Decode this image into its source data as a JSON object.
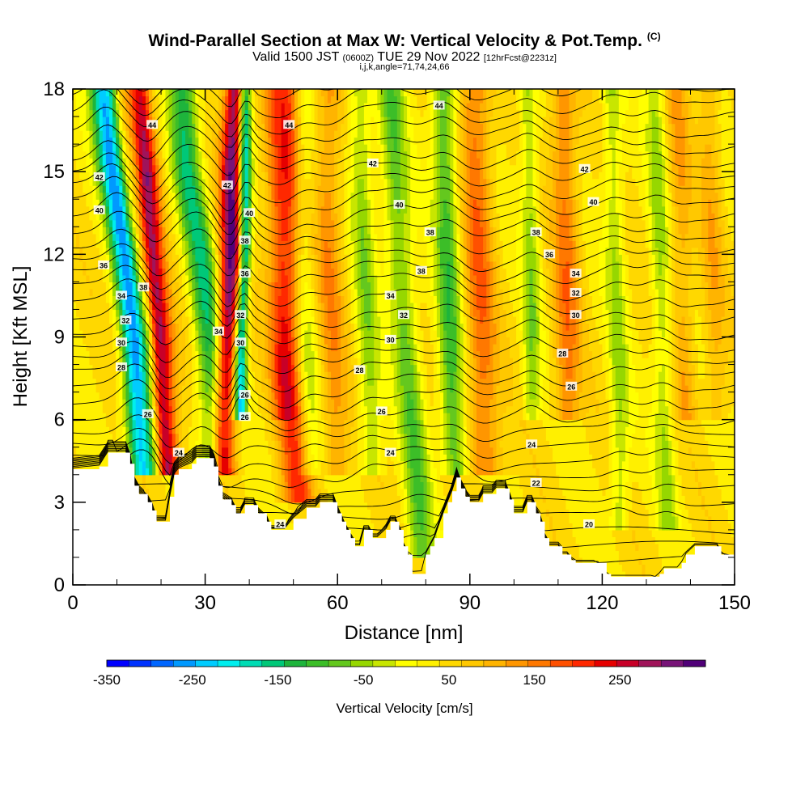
{
  "header": {
    "title": "Wind-Parallel Section at Max W: Vertical Velocity & Pot.Temp.",
    "copyright": "(C)",
    "valid_prefix": "Valid 1500 JST",
    "valid_zulu": "(0600Z)",
    "valid_date": "TUE 29 Nov 2022",
    "forecast": "[12hrFcst@2231z]",
    "indices": "i,j,k,angle=71,74,24,66"
  },
  "colors": {
    "terrain": "#ffffff",
    "contour": "#000000",
    "background": "#ffffff"
  },
  "chart_data": {
    "type": "heatmap",
    "xlabel": "Distance [nm]",
    "ylabel": "Height [Kft MSL]",
    "xlim": [
      0,
      150
    ],
    "ylim": [
      0,
      18
    ],
    "x_ticks": [
      "0",
      "30",
      "60",
      "90",
      "120",
      "150"
    ],
    "y_ticks": [
      "0",
      "3",
      "6",
      "9",
      "12",
      "15",
      "18"
    ],
    "colorbar": {
      "label": "Vertical Velocity [cm/s]",
      "range": [
        -350,
        350
      ],
      "tick_labels": [
        "-350",
        "-250",
        "-150",
        "-50",
        "50",
        "150",
        "250"
      ],
      "colors": [
        "#0000ff",
        "#0033ff",
        "#0066ff",
        "#0099ff",
        "#00ccff",
        "#00eeee",
        "#00dcb4",
        "#00c878",
        "#1eb43c",
        "#3cbe28",
        "#64c81e",
        "#96d700",
        "#c8e600",
        "#ffff00",
        "#fff000",
        "#ffd800",
        "#ffc800",
        "#ffb400",
        "#ff9600",
        "#ff7800",
        "#ff5000",
        "#ff2800",
        "#e60000",
        "#c80028",
        "#a0145a",
        "#781478",
        "#500078"
      ]
    },
    "terrain_profile": [
      [
        0,
        4.2
      ],
      [
        6,
        4.3
      ],
      [
        8,
        4.8
      ],
      [
        12,
        4.8
      ],
      [
        13,
        4.4
      ],
      [
        14,
        3.6
      ],
      [
        15,
        3.3
      ],
      [
        17,
        3.0
      ],
      [
        18,
        2.7
      ],
      [
        19,
        2.3
      ],
      [
        21,
        2.3
      ],
      [
        22,
        3.2
      ],
      [
        23,
        4.0
      ],
      [
        24,
        4.2
      ],
      [
        27,
        4.4
      ],
      [
        28,
        4.6
      ],
      [
        31,
        4.6
      ],
      [
        32,
        4.3
      ],
      [
        33,
        3.6
      ],
      [
        34,
        3.1
      ],
      [
        36,
        2.9
      ],
      [
        37,
        2.6
      ],
      [
        38,
        2.6
      ],
      [
        39,
        2.9
      ],
      [
        41,
        2.9
      ],
      [
        42,
        2.6
      ],
      [
        44,
        2.3
      ],
      [
        45,
        2.0
      ],
      [
        48,
        2.0
      ],
      [
        50,
        2.4
      ],
      [
        53,
        2.8
      ],
      [
        55,
        2.8
      ],
      [
        56,
        3.0
      ],
      [
        59,
        3.0
      ],
      [
        60,
        2.6
      ],
      [
        61,
        2.3
      ],
      [
        62,
        2.0
      ],
      [
        63,
        1.7
      ],
      [
        64,
        1.4
      ],
      [
        65,
        1.4
      ],
      [
        66,
        2.0
      ],
      [
        67,
        2.0
      ],
      [
        68,
        1.7
      ],
      [
        69,
        1.7
      ],
      [
        71,
        2.0
      ],
      [
        72,
        2.3
      ],
      [
        73,
        2.3
      ],
      [
        74,
        2.0
      ],
      [
        75,
        1.4
      ],
      [
        76,
        1.1
      ],
      [
        77,
        0.4
      ],
      [
        79,
        0.4
      ],
      [
        80,
        1.1
      ],
      [
        81,
        1.4
      ],
      [
        82,
        1.7
      ],
      [
        84,
        2.6
      ],
      [
        85,
        3.0
      ],
      [
        86,
        3.4
      ],
      [
        87,
        3.9
      ],
      [
        88,
        3.5
      ],
      [
        89,
        3.2
      ],
      [
        90,
        3.0
      ],
      [
        92,
        3.0
      ],
      [
        93,
        3.3
      ],
      [
        95,
        3.3
      ],
      [
        96,
        3.5
      ],
      [
        98,
        3.5
      ],
      [
        99,
        3.1
      ],
      [
        100,
        2.6
      ],
      [
        102,
        2.6
      ],
      [
        103,
        3.0
      ],
      [
        104,
        3.0
      ],
      [
        105,
        2.6
      ],
      [
        106,
        2.3
      ],
      [
        107,
        1.7
      ],
      [
        108,
        1.4
      ],
      [
        110,
        1.4
      ],
      [
        111,
        1.1
      ],
      [
        112,
        1.1
      ],
      [
        113,
        0.9
      ],
      [
        114,
        0.8
      ],
      [
        116,
        0.8
      ],
      [
        119,
        0.8
      ],
      [
        121,
        0.4
      ],
      [
        122,
        0.3
      ],
      [
        132,
        0.3
      ],
      [
        133,
        0.4
      ],
      [
        134,
        0.6
      ],
      [
        137,
        0.6
      ],
      [
        138,
        0.8
      ],
      [
        139,
        1.1
      ],
      [
        141,
        1.4
      ],
      [
        146,
        1.4
      ],
      [
        147,
        1.1
      ],
      [
        150,
        1.0
      ]
    ],
    "series": [
      {
        "name": "up-1",
        "values": [
          [
            14,
            18
          ],
          [
            16,
            15
          ],
          [
            17,
            12
          ],
          [
            19,
            9
          ],
          [
            20,
            6
          ],
          [
            21,
            4
          ]
        ],
        "width": 3.2,
        "amp": 300
      },
      {
        "name": "down-1",
        "values": [
          [
            7,
            18
          ],
          [
            9,
            15
          ],
          [
            12,
            12
          ],
          [
            14,
            9
          ],
          [
            15,
            6
          ],
          [
            16,
            4
          ]
        ],
        "width": 3.0,
        "amp": -300
      },
      {
        "name": "down-1b",
        "values": [
          [
            13,
            18
          ],
          [
            15,
            14
          ],
          [
            17,
            10
          ],
          [
            18,
            7
          ],
          [
            19,
            4
          ]
        ],
        "width": 2.0,
        "amp": -150
      },
      {
        "name": "up-2",
        "values": [
          [
            37,
            18
          ],
          [
            36,
            15
          ],
          [
            36,
            12
          ],
          [
            35,
            9
          ],
          [
            34,
            6
          ],
          [
            34,
            4
          ]
        ],
        "width": 2.6,
        "amp": 280
      },
      {
        "name": "down-2",
        "values": [
          [
            25,
            18
          ],
          [
            26,
            15
          ],
          [
            29,
            12
          ],
          [
            31,
            9
          ],
          [
            32,
            6
          ],
          [
            32,
            4
          ]
        ],
        "width": 3.2,
        "amp": -180
      },
      {
        "name": "down-2b",
        "values": [
          [
            39,
            14
          ],
          [
            39,
            12
          ],
          [
            38,
            9
          ],
          [
            38,
            6
          ]
        ],
        "width": 1.4,
        "amp": -280
      },
      {
        "name": "up-3",
        "values": [
          [
            49,
            8
          ],
          [
            50,
            6
          ],
          [
            51,
            3
          ]
        ],
        "width": 3.5,
        "amp": 150
      },
      {
        "name": "down-4",
        "values": [
          [
            52,
            18
          ],
          [
            52,
            12
          ],
          [
            53,
            8
          ],
          [
            54,
            4
          ]
        ],
        "width": 2.5,
        "amp": -80
      },
      {
        "name": "up-5",
        "values": [
          [
            58,
            18
          ],
          [
            58,
            12
          ],
          [
            59,
            8
          ],
          [
            60,
            4
          ]
        ],
        "width": 3.0,
        "amp": 90
      },
      {
        "name": "down-6",
        "values": [
          [
            65,
            18
          ],
          [
            66,
            12
          ],
          [
            67,
            8
          ],
          [
            68,
            4
          ]
        ],
        "width": 2.5,
        "amp": -90
      },
      {
        "name": "down-7",
        "values": [
          [
            72,
            18
          ],
          [
            74,
            12
          ],
          [
            76,
            8
          ],
          [
            78,
            4
          ],
          [
            79,
            1
          ]
        ],
        "width": 3.0,
        "amp": -120
      },
      {
        "name": "down-8",
        "values": [
          [
            84,
            18
          ],
          [
            85,
            12
          ],
          [
            86,
            6
          ],
          [
            87,
            4
          ]
        ],
        "width": 2.8,
        "amp": -140
      },
      {
        "name": "up-9",
        "values": [
          [
            91,
            18
          ],
          [
            92,
            12
          ],
          [
            93,
            6
          ],
          [
            94,
            4
          ]
        ],
        "width": 3.5,
        "amp": 120
      },
      {
        "name": "down-10",
        "values": [
          [
            103,
            18
          ],
          [
            104,
            12
          ],
          [
            104,
            6
          ]
        ],
        "width": 2.0,
        "amp": -90
      },
      {
        "name": "up-11",
        "values": [
          [
            111,
            18
          ],
          [
            112,
            12
          ],
          [
            112,
            6
          ]
        ],
        "width": 3.0,
        "amp": 110
      },
      {
        "name": "down-12",
        "values": [
          [
            122,
            18
          ],
          [
            123,
            12
          ],
          [
            124,
            6
          ],
          [
            124,
            2
          ]
        ],
        "width": 2.2,
        "amp": -80
      },
      {
        "name": "down-13",
        "values": [
          [
            132,
            18
          ],
          [
            133,
            12
          ],
          [
            134,
            6
          ],
          [
            135,
            2
          ]
        ],
        "width": 2.2,
        "amp": -80
      },
      {
        "name": "up-14",
        "values": [
          [
            144,
            18
          ],
          [
            145,
            12
          ],
          [
            146,
            6
          ]
        ],
        "width": 2.5,
        "amp": 60
      },
      {
        "name": "up-15",
        "values": [
          [
            45,
            18
          ],
          [
            46,
            12
          ],
          [
            48,
            6
          ]
        ],
        "width": 3.0,
        "amp": 70
      },
      {
        "name": "up-16",
        "values": [
          [
            137,
            18
          ],
          [
            138,
            12
          ],
          [
            139,
            6
          ]
        ],
        "width": 2.5,
        "amp": 70
      }
    ],
    "contour_labels": [
      {
        "text": "44",
        "x": 18,
        "y": 16.7
      },
      {
        "text": "44",
        "x": 49,
        "y": 16.7
      },
      {
        "text": "44",
        "x": 83,
        "y": 17.4
      },
      {
        "text": "42",
        "x": 6,
        "y": 14.8
      },
      {
        "text": "42",
        "x": 35,
        "y": 14.5
      },
      {
        "text": "42",
        "x": 68,
        "y": 15.3
      },
      {
        "text": "42",
        "x": 116,
        "y": 15.1
      },
      {
        "text": "40",
        "x": 6,
        "y": 13.6
      },
      {
        "text": "40",
        "x": 40,
        "y": 13.5
      },
      {
        "text": "40",
        "x": 74,
        "y": 13.8
      },
      {
        "text": "40",
        "x": 118,
        "y": 13.9
      },
      {
        "text": "38",
        "x": 16,
        "y": 10.8
      },
      {
        "text": "38",
        "x": 39,
        "y": 12.5
      },
      {
        "text": "38",
        "x": 81,
        "y": 12.8
      },
      {
        "text": "38",
        "x": 79,
        "y": 11.4
      },
      {
        "text": "38",
        "x": 105,
        "y": 12.8
      },
      {
        "text": "36",
        "x": 7,
        "y": 11.6
      },
      {
        "text": "36",
        "x": 39,
        "y": 11.3
      },
      {
        "text": "36",
        "x": 108,
        "y": 12.0
      },
      {
        "text": "34",
        "x": 11,
        "y": 10.5
      },
      {
        "text": "34",
        "x": 33,
        "y": 9.2
      },
      {
        "text": "34",
        "x": 72,
        "y": 10.5
      },
      {
        "text": "34",
        "x": 114,
        "y": 11.3
      },
      {
        "text": "32",
        "x": 12,
        "y": 9.6
      },
      {
        "text": "32",
        "x": 38,
        "y": 9.8
      },
      {
        "text": "32",
        "x": 75,
        "y": 9.8
      },
      {
        "text": "32",
        "x": 114,
        "y": 10.6
      },
      {
        "text": "30",
        "x": 11,
        "y": 8.8
      },
      {
        "text": "30",
        "x": 38,
        "y": 8.8
      },
      {
        "text": "30",
        "x": 72,
        "y": 8.9
      },
      {
        "text": "30",
        "x": 114,
        "y": 9.8
      },
      {
        "text": "28",
        "x": 11,
        "y": 7.9
      },
      {
        "text": "28",
        "x": 65,
        "y": 7.8
      },
      {
        "text": "28",
        "x": 111,
        "y": 8.4
      },
      {
        "text": "26",
        "x": 17,
        "y": 6.2
      },
      {
        "text": "26",
        "x": 39,
        "y": 6.9
      },
      {
        "text": "26",
        "x": 39,
        "y": 6.1
      },
      {
        "text": "26",
        "x": 70,
        "y": 6.3
      },
      {
        "text": "26",
        "x": 113,
        "y": 7.2
      },
      {
        "text": "24",
        "x": 24,
        "y": 4.8
      },
      {
        "text": "24",
        "x": 47,
        "y": 2.2
      },
      {
        "text": "24",
        "x": 72,
        "y": 4.8
      },
      {
        "text": "24",
        "x": 104,
        "y": 5.1
      },
      {
        "text": "22",
        "x": 105,
        "y": 3.7
      },
      {
        "text": "20",
        "x": 117,
        "y": 2.2
      }
    ]
  }
}
